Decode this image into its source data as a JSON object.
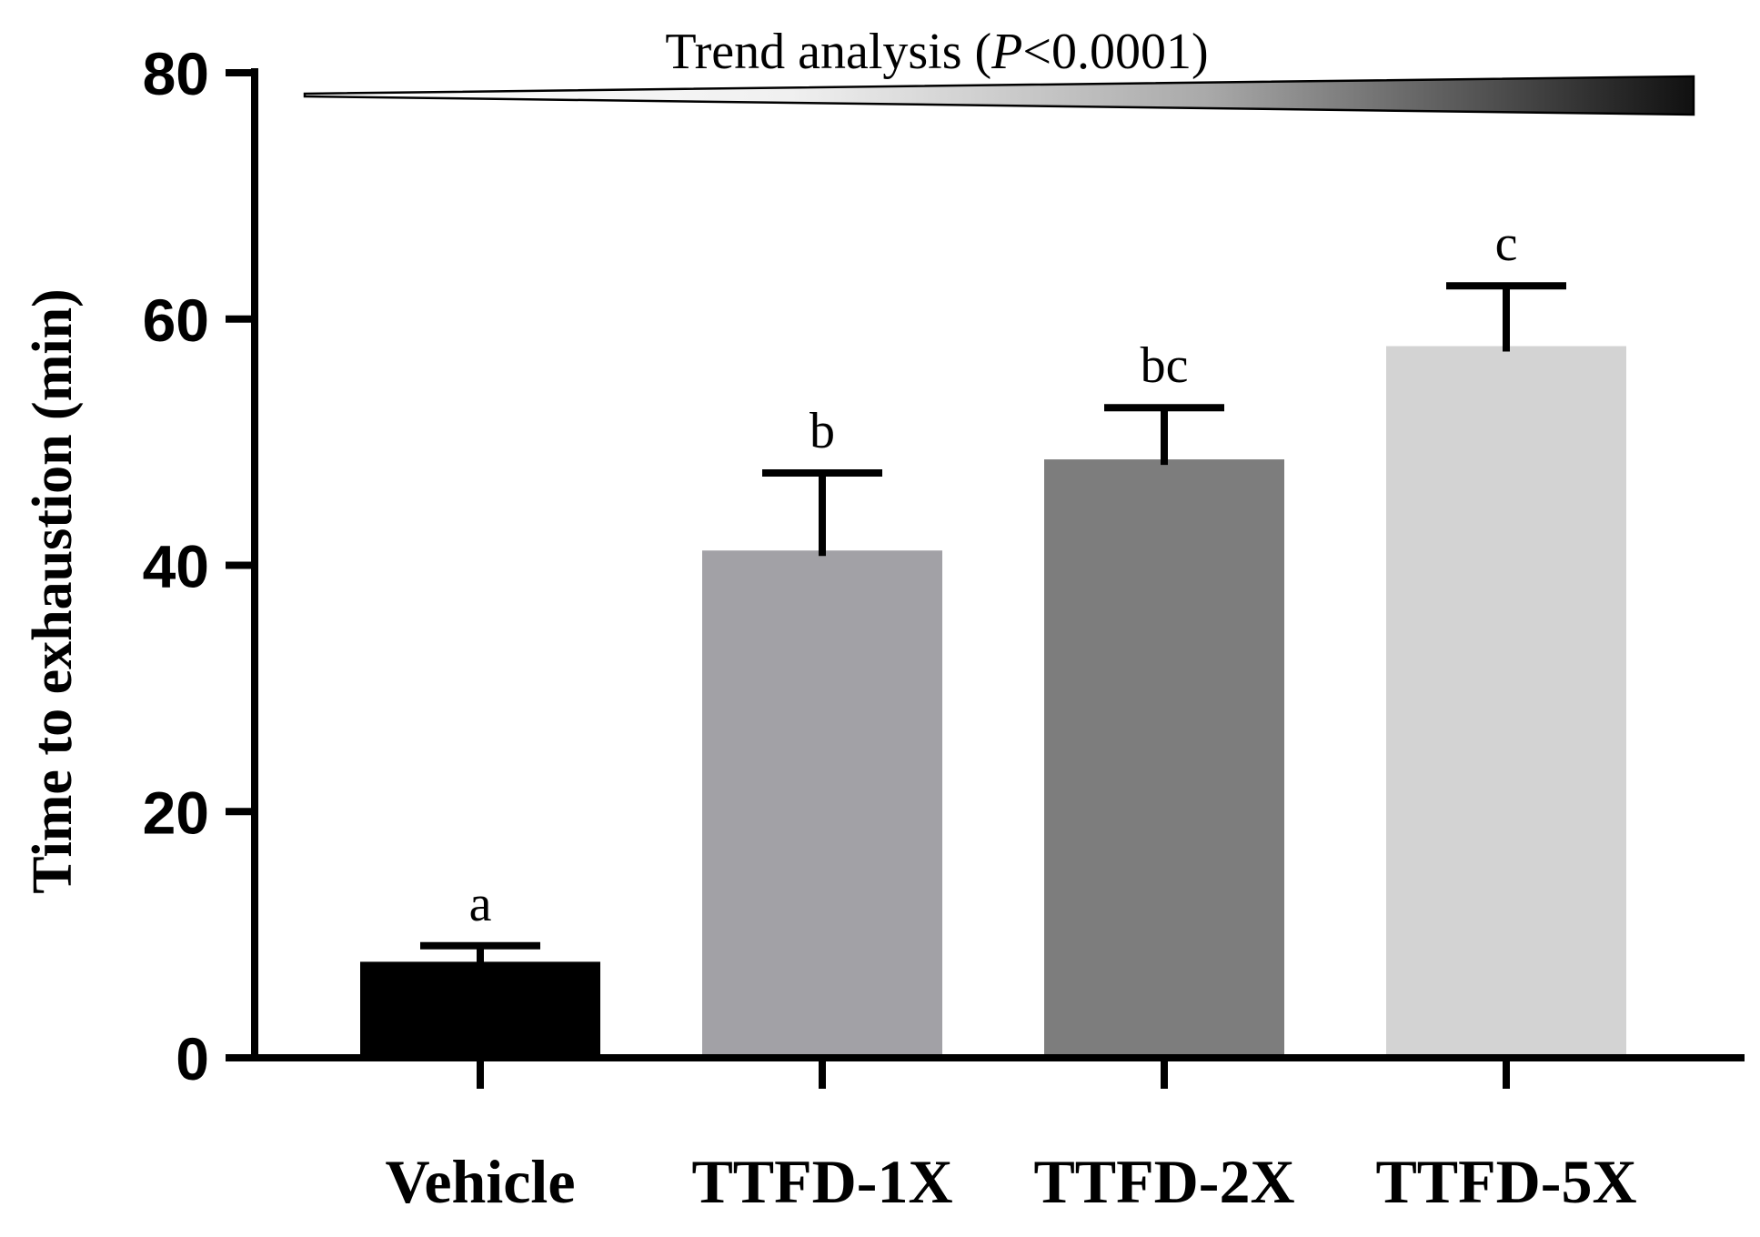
{
  "chart_data": {
    "type": "bar",
    "title": "",
    "xlabel": "",
    "ylabel": "Time to exhaustion (min)",
    "ylim": [
      0,
      80
    ],
    "yticks": [
      0,
      20,
      40,
      60,
      80
    ],
    "categories": [
      "Vehicle",
      "TTFD-1X",
      "TTFD-2X",
      "TTFD-5X"
    ],
    "values": [
      7.8,
      41.2,
      48.6,
      57.8
    ],
    "errors": [
      1.3,
      6.3,
      4.2,
      4.9
    ],
    "significance_letters": [
      "a",
      "b",
      "bc",
      "c"
    ],
    "bar_colors": [
      "#000000",
      "#a2a1a6",
      "#7d7d7d",
      "#d3d3d3"
    ],
    "trend": {
      "label_prefix": "Trend analysis (",
      "label_italic": "P",
      "label_suffix": "<0.0001)"
    },
    "grid": false,
    "legend": "none"
  }
}
